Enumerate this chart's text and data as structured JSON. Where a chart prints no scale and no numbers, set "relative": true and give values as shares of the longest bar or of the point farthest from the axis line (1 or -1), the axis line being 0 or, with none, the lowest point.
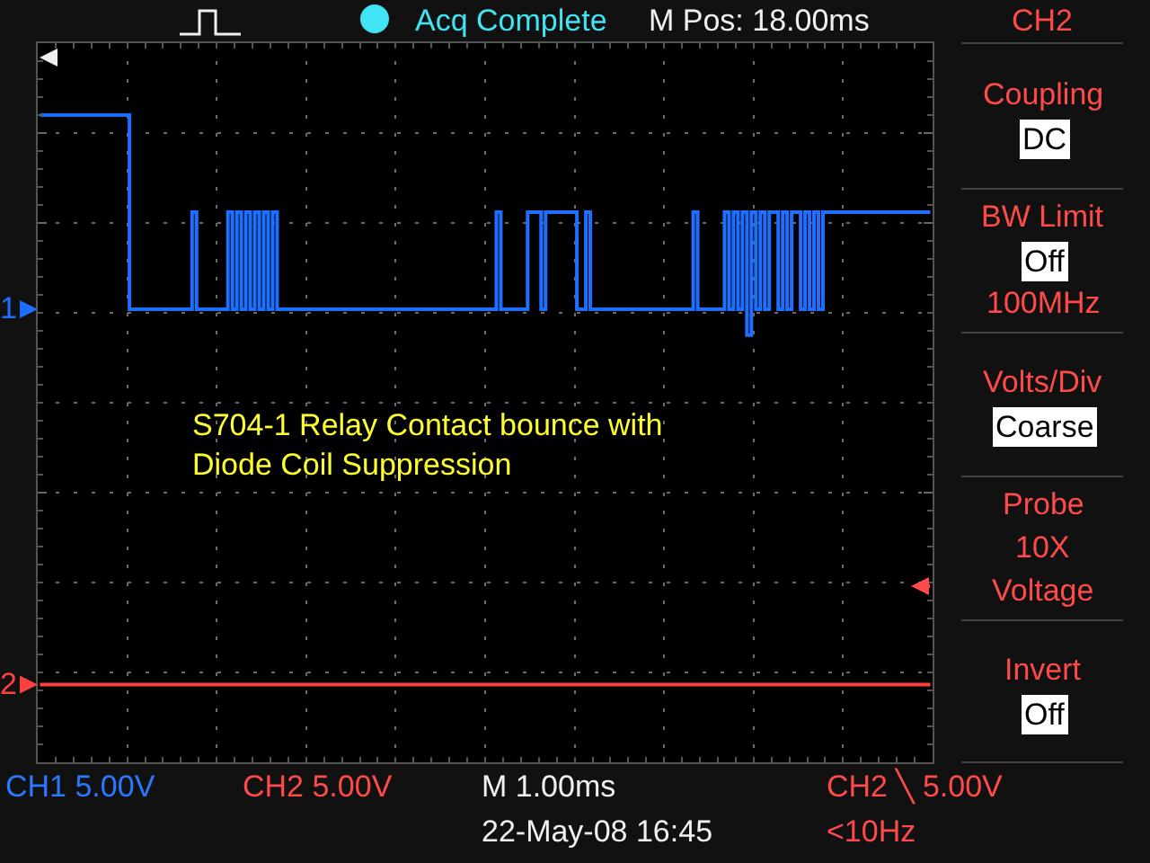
{
  "chart_data": {
    "type": "step",
    "title": "S704-1 Relay Contact bounce with\nDiode Coil Suppression",
    "relative": true,
    "grid": true,
    "legend": "left",
    "categories": [
      null,
      null,
      null,
      null,
      null,
      null,
      null,
      null,
      null,
      null,
      null,
      null,
      null,
      null,
      null,
      null,
      null,
      null,
      null,
      null,
      null,
      null,
      null,
      null,
      null,
      null,
      null,
      null,
      null,
      null,
      null,
      null,
      null,
      null,
      null,
      null,
      null,
      null,
      null,
      null,
      null,
      null,
      null,
      null,
      null,
      null,
      null,
      null,
      null,
      null,
      null,
      null,
      null,
      null,
      null,
      null,
      null,
      null,
      null,
      null,
      null,
      null,
      null,
      null,
      null,
      null,
      null,
      null,
      null,
      null,
      null,
      null,
      null,
      null,
      null,
      null,
      null,
      null,
      null,
      null,
      null,
      null,
      null,
      null,
      null,
      null,
      null,
      null,
      null,
      null,
      null,
      null,
      null,
      null,
      null,
      null,
      null,
      null,
      null,
      null,
      null,
      null,
      null,
      null,
      null,
      null,
      null,
      null,
      null,
      null,
      null,
      null,
      null,
      null,
      null,
      null,
      null,
      null,
      null,
      null,
      null,
      null,
      null,
      null,
      null,
      null,
      null,
      null,
      null,
      null,
      null,
      null,
      null,
      null,
      null,
      null,
      null,
      null,
      null,
      null,
      null,
      null,
      null,
      null,
      null,
      null,
      null,
      null,
      null,
      null,
      null,
      null,
      null,
      null,
      null,
      null,
      null,
      null,
      null,
      null,
      null,
      null,
      null,
      null,
      null,
      null,
      null,
      null,
      null,
      null,
      null,
      null,
      null,
      null,
      null,
      null,
      null,
      null,
      null,
      null,
      null,
      null,
      null,
      null,
      null,
      null,
      null,
      null,
      null,
      null,
      null,
      null,
      null,
      null,
      null,
      null,
      null,
      null,
      null,
      null
    ],
    "series": [
      {
        "name": "1",
        "color": "#1e6eff",
        "values": [
          1,
          1,
          1,
          1,
          1,
          1,
          1,
          1,
          1,
          1,
          1,
          1,
          1,
          1,
          1,
          1,
          1,
          1,
          1,
          1,
          0.7,
          0.7,
          0.7,
          0.7,
          0.7,
          0.7,
          0.7,
          0.7,
          0.7,
          0.7,
          0.7,
          0.7,
          0.7,
          0.7,
          0.85,
          0.7,
          0.7,
          0.7,
          0.7,
          0.7,
          0.7,
          0.7,
          0.85,
          0.7,
          0.85,
          0.7,
          0.85,
          0.7,
          0.85,
          0.7,
          0.85,
          0.7,
          0.85,
          0.7,
          0.7,
          0.7,
          0.7,
          0.7,
          0.7,
          0.7,
          0.7,
          0.7,
          0.7,
          0.7,
          0.7,
          0.7,
          0.7,
          0.7,
          0.7,
          0.7,
          0.7,
          0.7,
          0.7,
          0.7,
          0.7,
          0.7,
          0.7,
          0.7,
          0.7,
          0.7,
          0.7,
          0.7,
          0.7,
          0.7,
          0.7,
          0.7,
          0.7,
          0.7,
          0.7,
          0.7,
          0.7,
          0.7,
          0.7,
          0.7,
          0.7,
          0.7,
          0.7,
          0.7,
          0.7,
          0.7,
          0.7,
          0.7,
          0.85,
          0.7,
          0.7,
          0.7,
          0.7,
          0.7,
          0.7,
          0.85,
          0.85,
          0.85,
          0.7,
          0.85,
          0.85,
          0.85,
          0.85,
          0.85,
          0.85,
          0.85,
          0.7,
          0.7,
          0.85,
          0.7,
          0.7,
          0.7,
          0.7,
          0.7,
          0.7,
          0.7,
          0.7,
          0.7,
          0.7,
          0.7,
          0.7,
          0.7,
          0.7,
          0.7,
          0.7,
          0.7,
          0.7,
          0.7,
          0.7,
          0.7,
          0.7,
          0.7,
          0.85,
          0.7,
          0.7,
          0.7,
          0.7,
          0.7,
          0.7,
          0.85,
          0.7,
          0.85,
          0.7,
          0.85,
          0.66,
          0.85,
          0.7,
          0.85,
          0.7,
          0.85,
          0.85,
          0.7,
          0.85,
          0.7,
          0.85,
          0.85,
          0.7,
          0.85,
          0.7,
          0.85,
          0.7,
          0.85,
          0.85,
          0.85,
          0.85,
          0.85,
          0.85,
          0.85,
          0.85,
          0.85,
          0.85,
          0.85,
          0.85,
          0.85,
          0.85,
          0.85,
          0.85,
          0.85,
          0.85,
          0.85,
          0.85,
          0.85,
          0.85,
          0.85,
          0.85,
          0.85
        ]
      },
      {
        "name": "2",
        "color": "#ff4040",
        "values": [
          0.12,
          0.12,
          0.12,
          0.12,
          0.12,
          0.12,
          0.12,
          0.12,
          0.12,
          0.12,
          0.12,
          0.12,
          0.12,
          0.12,
          0.12,
          0.12,
          0.12,
          0.12,
          0.12,
          0.12,
          0.12,
          0.12,
          0.12,
          0.12,
          0.12,
          0.12,
          0.12,
          0.12,
          0.12,
          0.12,
          0.12,
          0.12,
          0.12,
          0.12,
          0.12,
          0.12,
          0.12,
          0.12,
          0.12,
          0.12,
          0.12,
          0.12,
          0.12,
          0.12,
          0.12,
          0.12,
          0.12,
          0.12,
          0.12,
          0.12,
          0.12,
          0.12,
          0.12,
          0.12,
          0.12,
          0.12,
          0.12,
          0.12,
          0.12,
          0.12,
          0.12,
          0.12,
          0.12,
          0.12,
          0.12,
          0.12,
          0.12,
          0.12,
          0.12,
          0.12,
          0.12,
          0.12,
          0.12,
          0.12,
          0.12,
          0.12,
          0.12,
          0.12,
          0.12,
          0.12,
          0.12,
          0.12,
          0.12,
          0.12,
          0.12,
          0.12,
          0.12,
          0.12,
          0.12,
          0.12,
          0.12,
          0.12,
          0.12,
          0.12,
          0.12,
          0.12,
          0.12,
          0.12,
          0.12,
          0.12,
          0.12,
          0.12,
          0.12,
          0.12,
          0.12,
          0.12,
          0.12,
          0.12,
          0.12,
          0.12,
          0.12,
          0.12,
          0.12,
          0.12,
          0.12,
          0.12,
          0.12,
          0.12,
          0.12,
          0.12,
          0.12,
          0.12,
          0.12,
          0.12,
          0.12,
          0.12,
          0.12,
          0.12,
          0.12,
          0.12,
          0.12,
          0.12,
          0.12,
          0.12,
          0.12,
          0.12,
          0.12,
          0.12,
          0.12,
          0.12,
          0.12,
          0.12,
          0.12,
          0.12,
          0.12,
          0.12,
          0.12,
          0.12,
          0.12,
          0.12,
          0.12,
          0.12,
          0.12,
          0.12,
          0.12,
          0.12,
          0.12,
          0.12,
          0.12,
          0.12,
          0.12,
          0.12,
          0.12,
          0.12,
          0.12,
          0.12,
          0.12,
          0.12,
          0.12,
          0.12,
          0.12,
          0.12,
          0.12,
          0.12,
          0.12,
          0.12,
          0.12,
          0.12,
          0.12,
          0.12,
          0.12,
          0.12,
          0.12,
          0.12,
          0.12,
          0.12,
          0.12,
          0.12,
          0.12,
          0.12,
          0.12,
          0.12,
          0.12,
          0.12,
          0.12,
          0.12,
          0.12,
          0.12,
          0.12,
          0.12
        ]
      }
    ],
    "annotations": [
      "Acq Complete",
      "M Pos: 18.00ms",
      "CH2",
      "Coupling",
      "DC",
      "BW Limit",
      "Off",
      "100MHz",
      "Volts/Div",
      "Coarse",
      "Probe",
      "10X",
      "Voltage",
      "Invert",
      "Off",
      "CH1 5.00V",
      "CH2 5.00V",
      "M 1.00ms",
      "CH2 ╲ 5.00V",
      "22-May-08 16:45",
      "<10Hz"
    ]
  }
}
